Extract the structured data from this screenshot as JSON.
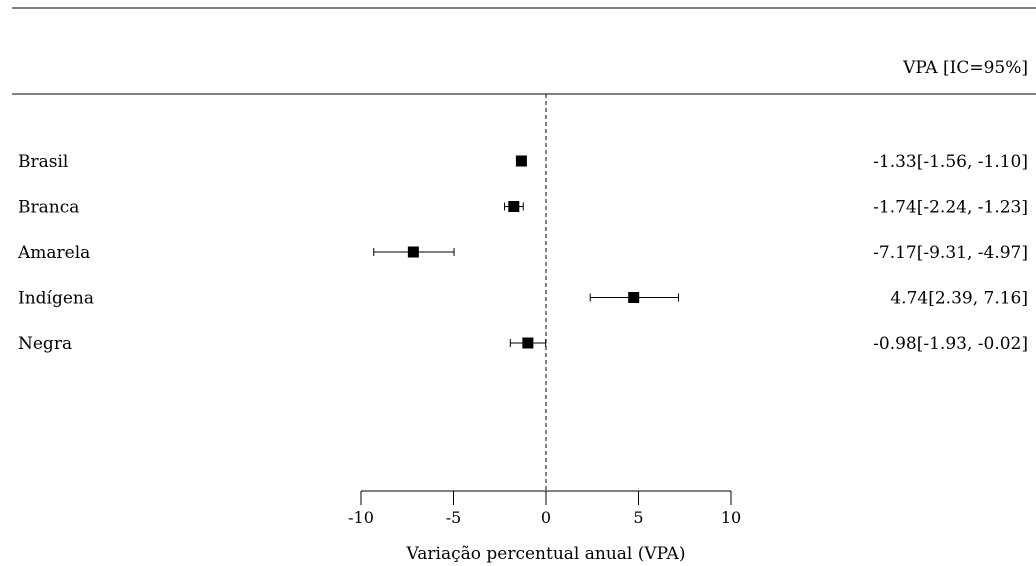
{
  "chart_data": {
    "type": "forest",
    "header_right": "VPA [IC=95%]",
    "xlabel": "Variação percentual anual (VPA)",
    "xlim": [
      -10,
      10
    ],
    "xticks": [
      -10,
      -5,
      0,
      5,
      10
    ],
    "tick_labels": [
      "-10",
      "-5",
      "0",
      "5",
      "10"
    ],
    "reference_line": 0,
    "rows": [
      {
        "label": "Brasil",
        "estimate": -1.33,
        "lower": -1.56,
        "upper": -1.1,
        "ci_text": "-1.33[-1.56, -1.10]"
      },
      {
        "label": "Branca",
        "estimate": -1.74,
        "lower": -2.24,
        "upper": -1.23,
        "ci_text": "-1.74[-2.24, -1.23]"
      },
      {
        "label": "Amarela",
        "estimate": -7.17,
        "lower": -9.31,
        "upper": -4.97,
        "ci_text": "-7.17[-9.31, -4.97]"
      },
      {
        "label": "Indígena",
        "estimate": 4.74,
        "lower": 2.39,
        "upper": 7.16,
        "ci_text": "4.74[2.39, 7.16]"
      },
      {
        "label": "Negra",
        "estimate": -0.98,
        "lower": -1.93,
        "upper": -0.02,
        "ci_text": "-0.98[-1.93, -0.02]"
      }
    ]
  }
}
